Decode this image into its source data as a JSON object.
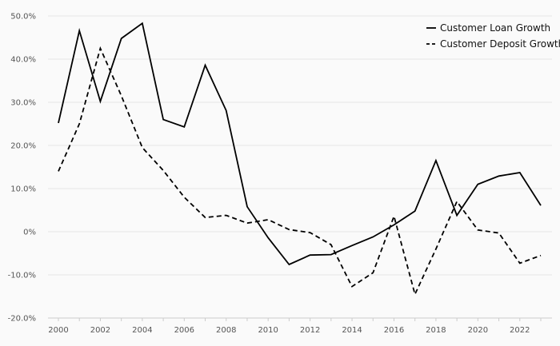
{
  "chart_data": {
    "type": "line",
    "title": "",
    "xlabel": "",
    "ylabel": "",
    "x": [
      2000,
      2001,
      2002,
      2003,
      2004,
      2005,
      2006,
      2007,
      2008,
      2009,
      2010,
      2011,
      2012,
      2013,
      2014,
      2015,
      2016,
      2017,
      2018,
      2019,
      2020,
      2021,
      2022,
      2023
    ],
    "xticks": [
      "2000",
      "2002",
      "2004",
      "2006",
      "2008",
      "2010",
      "2012",
      "2014",
      "2016",
      "2018",
      "2020",
      "2022"
    ],
    "ylim": [
      -20,
      50
    ],
    "yticks": [
      "-20.0%",
      "-10.0%",
      "0%",
      "10.0%",
      "20.0%",
      "30.0%",
      "40.0%",
      "50.0%"
    ],
    "grid": true,
    "legend_position": "top-right",
    "series": [
      {
        "name": "Customer Loan Growth",
        "style": "solid",
        "color": "#000000",
        "values": [
          25.2,
          46.6,
          30.2,
          44.8,
          48.3,
          26.0,
          24.3,
          38.6,
          28.1,
          5.8,
          -1.4,
          -7.6,
          -5.4,
          -5.3,
          -3.2,
          -1.2,
          1.6,
          4.8,
          16.5,
          3.8,
          11.0,
          12.9,
          13.7,
          6.1
        ]
      },
      {
        "name": "Customer Deposit Growth",
        "style": "dashed",
        "color": "#000000",
        "values": [
          14.0,
          25.0,
          42.5,
          31.5,
          19.5,
          14.2,
          8.0,
          3.3,
          3.8,
          2.0,
          2.8,
          0.5,
          -0.2,
          -3.0,
          -12.7,
          -9.5,
          3.6,
          -14.5,
          -4.0,
          7.0,
          0.4,
          -0.3,
          -7.3,
          -5.5
        ]
      }
    ]
  }
}
